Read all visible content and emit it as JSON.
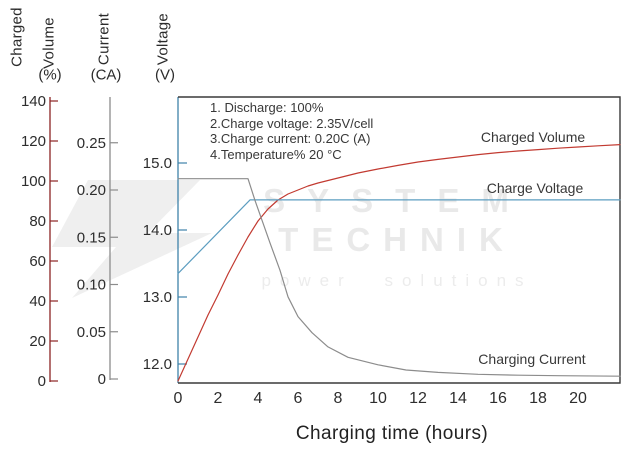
{
  "chart_data": {
    "type": "line",
    "title": "",
    "xlabel": "Charging time (hours)",
    "x_axis": {
      "ticks": [
        0,
        2,
        4,
        6,
        8,
        10,
        12,
        14,
        16,
        18,
        20
      ],
      "tick_labels": [
        "0",
        "2",
        "4",
        "6",
        "8",
        "10",
        "12",
        "14",
        "16",
        "18",
        "20"
      ],
      "range": [
        0,
        22.1
      ]
    },
    "y_axes": [
      {
        "id": "volume",
        "title_lines": [
          "Charged",
          "Volume"
        ],
        "unit": "(%)",
        "axis_color": "#8b2323",
        "ticks": [
          0,
          20,
          40,
          60,
          80,
          100,
          120,
          140
        ],
        "tick_labels": [
          "0",
          "20",
          "40",
          "60",
          "80",
          "100",
          "120",
          "140"
        ],
        "range": [
          0,
          142
        ]
      },
      {
        "id": "current",
        "title_lines": [
          "Current"
        ],
        "unit": "(CA)",
        "axis_color": "#8c8c8c",
        "ticks": [
          0,
          0.05,
          0.1,
          0.15,
          0.2,
          0.25
        ],
        "tick_labels": [
          "0",
          "0.05",
          "0.10",
          "0.15",
          "0.20",
          "0.25"
        ],
        "range": [
          0,
          0.298
        ]
      },
      {
        "id": "voltage",
        "title_lines": [
          "Voltage"
        ],
        "unit": "(V)",
        "axis_color": "#3f83a9",
        "ticks": [
          12,
          13,
          14,
          15
        ],
        "tick_labels": [
          "12.0",
          "13.0",
          "14.0",
          "15.0"
        ],
        "range": [
          11.7,
          15.3
        ]
      }
    ],
    "series": [
      {
        "name": "Charged Volume",
        "axis": "volume",
        "color": "#c23a31",
        "points": [
          [
            0,
            0
          ],
          [
            0.5,
            11
          ],
          [
            1,
            22
          ],
          [
            1.5,
            33
          ],
          [
            2,
            43
          ],
          [
            2.5,
            53.5
          ],
          [
            3,
            63
          ],
          [
            3.5,
            72
          ],
          [
            4,
            80
          ],
          [
            4.5,
            86
          ],
          [
            5,
            90.5
          ],
          [
            5.5,
            93.5
          ],
          [
            6,
            95.5
          ],
          [
            6.5,
            97.5
          ],
          [
            7,
            99
          ],
          [
            8,
            101.5
          ],
          [
            9,
            104
          ],
          [
            10,
            106
          ],
          [
            11,
            107.8
          ],
          [
            12,
            109.5
          ],
          [
            13,
            110.8
          ],
          [
            14,
            112
          ],
          [
            15,
            113.2
          ],
          [
            16,
            114.2
          ],
          [
            17,
            115
          ],
          [
            18,
            115.7
          ],
          [
            19,
            116.4
          ],
          [
            20,
            117
          ],
          [
            21,
            117.6
          ],
          [
            22.1,
            118.2
          ]
        ]
      },
      {
        "name": "Charge Voltage",
        "axis": "voltage",
        "color": "#5c9dc0",
        "points": [
          [
            0,
            13.35
          ],
          [
            3.6,
            14.45
          ],
          [
            22.1,
            14.45
          ]
        ]
      },
      {
        "name": "Charging Current",
        "axis": "current",
        "color": "#8c8c8c",
        "points": [
          [
            0,
            0.212
          ],
          [
            3.5,
            0.212
          ],
          [
            3.85,
            0.189
          ],
          [
            4.25,
            0.165
          ],
          [
            4.6,
            0.144
          ],
          [
            5.1,
            0.115
          ],
          [
            5.5,
            0.087
          ],
          [
            6.0,
            0.066
          ],
          [
            6.7,
            0.049
          ],
          [
            7.5,
            0.034
          ],
          [
            8.5,
            0.023
          ],
          [
            10,
            0.015
          ],
          [
            11.4,
            0.0095
          ],
          [
            13,
            0.007
          ],
          [
            15,
            0.005
          ],
          [
            17,
            0.004
          ],
          [
            19,
            0.0035
          ],
          [
            22.1,
            0.003
          ]
        ]
      }
    ],
    "annotations": [
      "1. Discharge: 100%",
      "2.Charge voltage: 2.35V/cell",
      "3.Charge current: 0.20C (A)",
      "4.Temperature% 20 °C"
    ]
  },
  "watermark": {
    "line1": "SYSTEM",
    "line2": "TECHNIK",
    "line3": "power solutions"
  }
}
